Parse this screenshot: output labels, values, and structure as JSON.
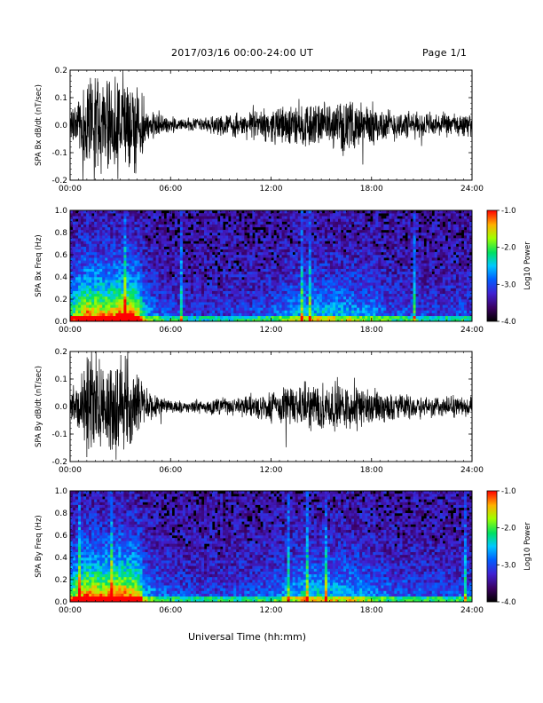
{
  "header": {
    "title": "2017/03/16  00:00-24:00 UT",
    "page": "Page 1/1"
  },
  "xaxis": {
    "label": "Universal Time (hh:mm)",
    "ticks": [
      "00:00",
      "06:00",
      "12:00",
      "18:00",
      "24:00"
    ]
  },
  "colorbar": {
    "label": "Log10 Power",
    "ticks": [
      "-1.0",
      "-2.0",
      "-3.0",
      "-4.0"
    ],
    "tick_values": [
      -1.0,
      -2.0,
      -3.0,
      -4.0
    ]
  },
  "chart_data": [
    {
      "type": "line",
      "name": "bx_dbdt",
      "ylabel": "SPA Bx dB/dt (nT/sec)",
      "xlim_hours": [
        0,
        24
      ],
      "ylim": [
        -0.2,
        0.2
      ],
      "yticks": [
        "0.2",
        "0.1",
        "0.0",
        "-0.1",
        "-0.2"
      ],
      "ytick_values": [
        0.2,
        0.1,
        0.0,
        -0.1,
        -0.2
      ],
      "envelope": {
        "hours": [
          0.0,
          0.5,
          1.0,
          1.5,
          2.0,
          2.5,
          3.0,
          3.5,
          4.0,
          4.5,
          5.0,
          5.5,
          6.0,
          7.0,
          8.0,
          9.0,
          10.0,
          11.0,
          12.0,
          13.0,
          14.0,
          15.0,
          16.0,
          17.0,
          18.0,
          19.0,
          20.0,
          21.0,
          22.0,
          23.0,
          24.0
        ],
        "amplitude": [
          0.06,
          0.14,
          0.22,
          0.22,
          0.2,
          0.2,
          0.22,
          0.22,
          0.2,
          0.08,
          0.06,
          0.04,
          0.035,
          0.03,
          0.035,
          0.04,
          0.05,
          0.06,
          0.07,
          0.09,
          0.1,
          0.09,
          0.1,
          0.1,
          0.09,
          0.07,
          0.06,
          0.055,
          0.05,
          0.05,
          0.045
        ]
      }
    },
    {
      "type": "heatmap",
      "name": "bx_freq",
      "ylabel": "SPA Bx Freq (Hz)",
      "xlim_hours": [
        0,
        24
      ],
      "ylim": [
        0.0,
        1.0
      ],
      "yticks": [
        "1.0",
        "0.8",
        "0.6",
        "0.4",
        "0.2",
        "0.0"
      ],
      "ytick_values": [
        1.0,
        0.8,
        0.6,
        0.4,
        0.2,
        0.0
      ],
      "zlim": [
        -4.0,
        -1.0
      ],
      "activity": {
        "hours": [
          0.0,
          1.0,
          2.0,
          3.0,
          4.0,
          4.5,
          5.0,
          6.0,
          8.0,
          10.0,
          12.0,
          13.0,
          14.0,
          15.0,
          16.0,
          17.0,
          18.0,
          19.0,
          20.0,
          22.0,
          24.0
        ],
        "level": [
          0.55,
          0.9,
          0.85,
          0.95,
          0.85,
          0.35,
          0.25,
          0.15,
          0.12,
          0.15,
          0.2,
          0.3,
          0.4,
          0.4,
          0.38,
          0.35,
          0.3,
          0.2,
          0.18,
          0.15,
          0.18
        ]
      }
    },
    {
      "type": "line",
      "name": "by_dbdt",
      "ylabel": "SPA By dB/dt (nT/sec)",
      "xlim_hours": [
        0,
        24
      ],
      "ylim": [
        -0.2,
        0.2
      ],
      "yticks": [
        "0.2",
        "0.1",
        "0.0",
        "-0.1",
        "-0.2"
      ],
      "ytick_values": [
        0.2,
        0.1,
        0.0,
        -0.1,
        -0.2
      ],
      "envelope": {
        "hours": [
          0.0,
          0.5,
          1.0,
          1.5,
          2.0,
          2.5,
          3.0,
          3.5,
          4.0,
          4.5,
          5.0,
          5.5,
          6.0,
          7.0,
          8.0,
          9.0,
          10.0,
          11.0,
          12.0,
          13.0,
          14.0,
          15.0,
          16.0,
          17.0,
          18.0,
          19.0,
          20.0,
          21.0,
          22.0,
          23.0,
          24.0
        ],
        "amplitude": [
          0.05,
          0.12,
          0.22,
          0.22,
          0.18,
          0.2,
          0.22,
          0.22,
          0.18,
          0.08,
          0.05,
          0.04,
          0.03,
          0.025,
          0.03,
          0.035,
          0.045,
          0.06,
          0.07,
          0.09,
          0.1,
          0.1,
          0.1,
          0.09,
          0.08,
          0.06,
          0.05,
          0.05,
          0.045,
          0.045,
          0.04
        ]
      }
    },
    {
      "type": "heatmap",
      "name": "by_freq",
      "ylabel": "SPA By Freq (Hz)",
      "xlim_hours": [
        0,
        24
      ],
      "ylim": [
        0.0,
        1.0
      ],
      "yticks": [
        "1.0",
        "0.8",
        "0.6",
        "0.4",
        "0.2",
        "0.0"
      ],
      "ytick_values": [
        1.0,
        0.8,
        0.6,
        0.4,
        0.2,
        0.0
      ],
      "zlim": [
        -4.0,
        -1.0
      ],
      "activity": {
        "hours": [
          0.0,
          1.0,
          2.0,
          3.0,
          4.0,
          4.5,
          5.0,
          6.0,
          8.0,
          10.0,
          12.0,
          13.0,
          14.0,
          15.0,
          16.0,
          17.0,
          18.0,
          19.0,
          20.0,
          22.0,
          24.0
        ],
        "level": [
          0.6,
          0.9,
          0.85,
          0.95,
          0.85,
          0.35,
          0.3,
          0.18,
          0.15,
          0.18,
          0.22,
          0.32,
          0.45,
          0.42,
          0.4,
          0.38,
          0.3,
          0.22,
          0.2,
          0.18,
          0.2
        ]
      }
    }
  ]
}
